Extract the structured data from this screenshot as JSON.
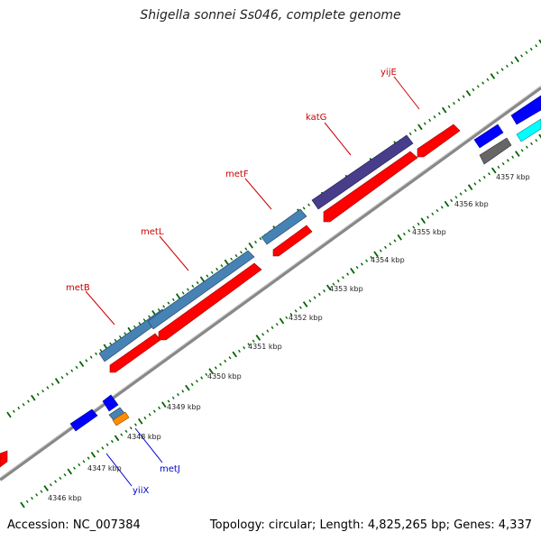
{
  "title": "Shigella sonnei Ss046, complete genome",
  "accession_label": "Accession: NC_007384",
  "summary_label": "Topology: circular; Length: 4,825,265 bp; Genes: 4,337",
  "colors": {
    "forward_gene": "#0000ff",
    "reverse_gene": "#ff0000",
    "operon_blue": "#4682b4",
    "operon_purple": "#483d8b",
    "pseudo_gray": "#666666",
    "cyan_feature": "#00ffff",
    "orange_feature": "#ff8c00",
    "backbone": "#888888",
    "tick_green": "#006400",
    "label_red": "#cc0000",
    "label_blue": "#0000cc"
  },
  "scale_labels": [
    "4346 kbp",
    "4347 kbp",
    "4348 kbp",
    "4349 kbp",
    "4350 kbp",
    "4351 kbp",
    "4352 kbp",
    "4353 kbp",
    "4354 kbp",
    "4355 kbp",
    "4356 kbp",
    "4357 kbp"
  ],
  "gene_labels_top": [
    "metB",
    "metL",
    "metF",
    "katG",
    "yijE"
  ],
  "gene_labels_bottom": [
    "metJ",
    "yiiX"
  ]
}
